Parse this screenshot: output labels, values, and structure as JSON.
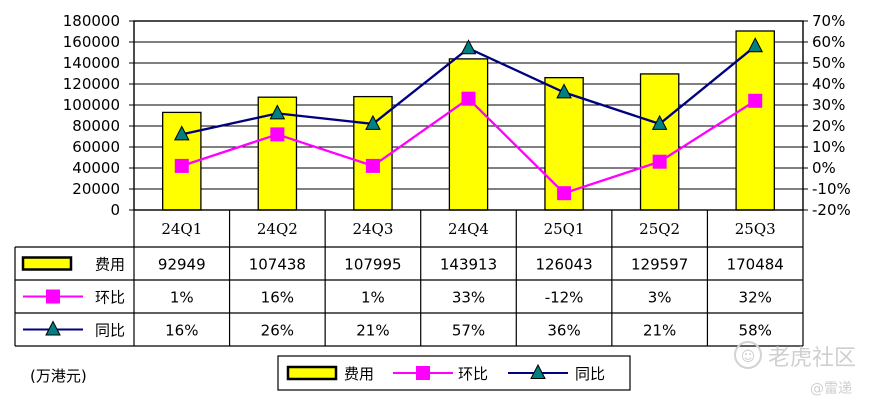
{
  "chart_data": {
    "type": "bar",
    "categories": [
      "24Q1",
      "24Q2",
      "24Q3",
      "24Q4",
      "25Q1",
      "25Q2",
      "25Q3"
    ],
    "series": [
      {
        "name": "费用",
        "type": "bar",
        "axis": "left",
        "color": "#FFFF00",
        "values": [
          92949,
          107438,
          107995,
          143913,
          126043,
          129597,
          170484
        ],
        "labels": [
          "92949",
          "107438",
          "107995",
          "143913",
          "126043",
          "129597",
          "170484"
        ]
      },
      {
        "name": "环比",
        "type": "line",
        "axis": "right",
        "color": "#FF00FF",
        "marker": "square",
        "values": [
          1,
          16,
          1,
          33,
          -12,
          3,
          32
        ],
        "labels": [
          "1%",
          "16%",
          "1%",
          "33%",
          "-12%",
          "3%",
          "32%"
        ]
      },
      {
        "name": "同比",
        "type": "line",
        "axis": "right",
        "color": "#000080",
        "marker": "triangle",
        "values": [
          16,
          26,
          21,
          57,
          36,
          21,
          58
        ],
        "labels": [
          "16%",
          "26%",
          "21%",
          "57%",
          "36%",
          "21%",
          "58%"
        ]
      }
    ],
    "left_axis": {
      "ylim": [
        0,
        180000
      ],
      "ticks": [
        "0",
        "20000",
        "40000",
        "60000",
        "80000",
        "100000",
        "120000",
        "140000",
        "160000",
        "180000"
      ]
    },
    "right_axis": {
      "ylim": [
        -20,
        70
      ],
      "ticks": [
        "-20%",
        "-10%",
        "0%",
        "10%",
        "20%",
        "30%",
        "40%",
        "50%",
        "60%",
        "70%"
      ]
    },
    "grid": true,
    "legend_position": "bottom",
    "data_table": true
  },
  "unit_note": "(万港元)",
  "watermark": {
    "brand": "老虎社区",
    "author": "@雷递"
  }
}
